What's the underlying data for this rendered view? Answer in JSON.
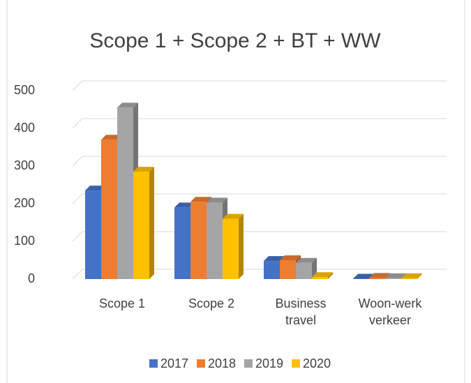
{
  "chart_data": {
    "type": "bar",
    "title": "Scope 1 + Scope 2 + BT + WW",
    "categories": [
      "Scope 1",
      "Scope 2",
      "Business travel",
      "Woon-werk verkeer"
    ],
    "series": [
      {
        "name": "2017",
        "color": "#4472c4",
        "values": [
          235,
          190,
          48,
          1
        ]
      },
      {
        "name": "2018",
        "color": "#ed7d31",
        "values": [
          370,
          205,
          50,
          3
        ]
      },
      {
        "name": "2019",
        "color": "#a5a5a5",
        "values": [
          455,
          203,
          43,
          2
        ]
      },
      {
        "name": "2020",
        "color": "#ffc000",
        "values": [
          285,
          160,
          5,
          2
        ]
      }
    ],
    "ylim": [
      0,
      500
    ],
    "yticks": [
      0,
      100,
      200,
      300,
      400,
      500
    ],
    "grid": true,
    "legend": "bottom"
  }
}
